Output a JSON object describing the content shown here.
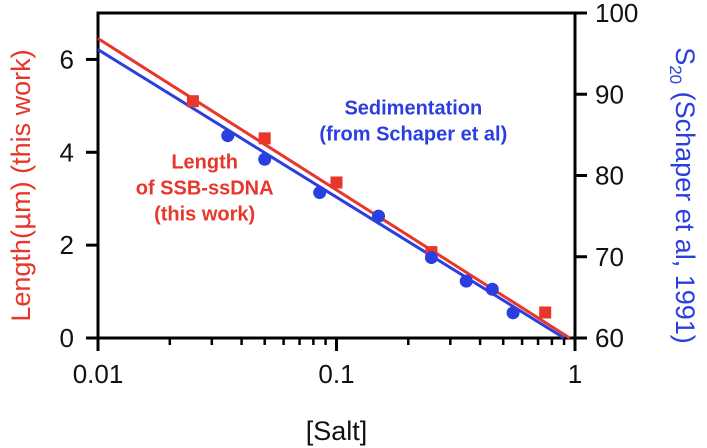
{
  "chart_data": {
    "type": "scatter",
    "xlabel": "[Salt]",
    "xscale": "log",
    "xlim": [
      0.01,
      1
    ],
    "x_ticks": [
      {
        "value": 0.01,
        "label": "0.01"
      },
      {
        "value": 0.1,
        "label": "0.1"
      },
      {
        "value": 1,
        "label": "1"
      }
    ],
    "y_left": {
      "label": "Length (μm) (this work)",
      "label_parts": [
        "Length",
        "(",
        "μ",
        "m) (this work)"
      ],
      "lim": [
        0,
        7
      ],
      "ticks": [
        {
          "value": 0,
          "label": "0"
        },
        {
          "value": 2,
          "label": "2"
        },
        {
          "value": 4,
          "label": "4"
        },
        {
          "value": 6,
          "label": "6"
        }
      ],
      "color": "#e8362a"
    },
    "y_right": {
      "label": "S20 (Schaper et al, 1991)",
      "label_parts": [
        "S",
        "20",
        " (Schaper et al, 1991)"
      ],
      "lim": [
        60,
        100
      ],
      "ticks": [
        {
          "value": 60,
          "label": "60"
        },
        {
          "value": 70,
          "label": "70"
        },
        {
          "value": 80,
          "label": "80"
        },
        {
          "value": 90,
          "label": "90"
        },
        {
          "value": 100,
          "label": "100"
        }
      ],
      "color": "#2b3ee0"
    },
    "series": [
      {
        "axis": "left",
        "color": "#e8362a",
        "marker": "square",
        "points": [
          {
            "x": 0.025,
            "y": 5.1
          },
          {
            "x": 0.05,
            "y": 4.3
          },
          {
            "x": 0.1,
            "y": 3.35
          },
          {
            "x": 0.25,
            "y": 1.85
          },
          {
            "x": 0.75,
            "y": 0.55
          }
        ],
        "fit": [
          {
            "x": 0.01,
            "y": 6.45
          },
          {
            "x": 0.95,
            "y": 0
          }
        ]
      },
      {
        "axis": "right",
        "color": "#2b3ee0",
        "marker": "circle",
        "points": [
          {
            "x": 0.035,
            "y": 84.9
          },
          {
            "x": 0.05,
            "y": 82.0
          },
          {
            "x": 0.085,
            "y": 77.9
          },
          {
            "x": 0.15,
            "y": 75.0
          },
          {
            "x": 0.25,
            "y": 69.9
          },
          {
            "x": 0.35,
            "y": 67.0
          },
          {
            "x": 0.45,
            "y": 66.0
          },
          {
            "x": 0.55,
            "y": 63.1
          }
        ],
        "fit": [
          {
            "x": 0.01,
            "y": 95.5
          },
          {
            "x": 0.9,
            "y": 60
          }
        ]
      }
    ],
    "annotations": [
      {
        "lines": [
          "Sedimentation",
          "(from Schaper et al)"
        ],
        "color": "#2b3ee0",
        "at": {
          "x": 0.21,
          "y": 87.5
        }
      },
      {
        "lines": [
          "Length",
          "of SSB-ssDNA",
          "(this work)"
        ],
        "color": "#e8362a",
        "at": {
          "x": 0.028,
          "y": 3.65
        }
      }
    ],
    "grid": false
  }
}
